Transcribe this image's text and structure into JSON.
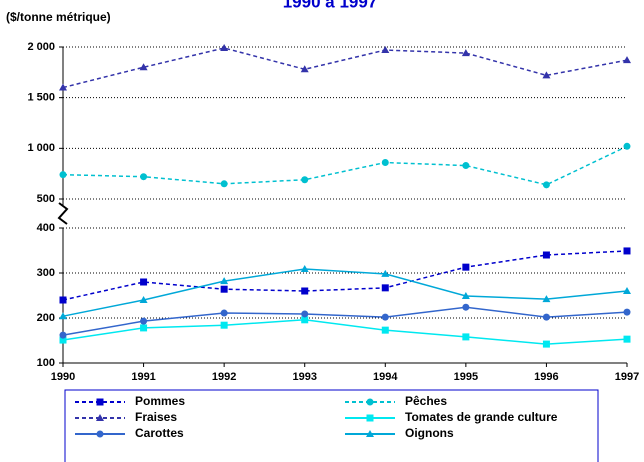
{
  "chart_data": {
    "type": "line",
    "title": "1990 à 1997",
    "y_label": "($/tonne métrique)",
    "categories": [
      "1990",
      "1991",
      "1992",
      "1993",
      "1994",
      "1995",
      "1996",
      "1997"
    ],
    "ylim": [
      100,
      400
    ],
    "yticks": [
      100,
      200,
      300,
      400
    ],
    "y2lim": [
      500,
      2000
    ],
    "y2ticks": [
      500,
      {
        "value": 1000,
        "label": "1 000"
      },
      {
        "value": 1500,
        "label": "1 500"
      },
      {
        "value": 2000,
        "label": "2 000"
      }
    ],
    "grid": true,
    "series": [
      {
        "name": "Pommes",
        "color": "#0000cc",
        "dash": true,
        "marker": "square",
        "values": [
          240,
          280,
          264,
          260,
          267,
          313,
          340,
          349
        ]
      },
      {
        "name": "Pêches",
        "color": "#00c0d0",
        "dash": true,
        "marker": "circle",
        "axis": "y2",
        "values": [
          740,
          720,
          650,
          690,
          860,
          830,
          640,
          1020
        ]
      },
      {
        "name": "Fraises",
        "color": "#3333aa",
        "dash": true,
        "marker": "triangle",
        "axis": "y2",
        "values": [
          1600,
          1800,
          1990,
          1780,
          1970,
          1940,
          1720,
          1870
        ]
      },
      {
        "name": "Tomates de grande culture",
        "color": "#00e8f0",
        "dash": false,
        "marker": "square",
        "values": [
          151,
          178,
          184,
          196,
          173,
          158,
          142,
          153
        ]
      },
      {
        "name": "Carottes",
        "color": "#3366cc",
        "dash": false,
        "marker": "circle",
        "values": [
          162,
          193,
          211,
          209,
          202,
          224,
          202,
          213
        ]
      },
      {
        "name": "Oignons",
        "color": "#00a8d8",
        "dash": false,
        "marker": "triangle",
        "values": [
          204,
          240,
          282,
          309,
          298,
          249,
          242,
          260
        ]
      }
    ]
  }
}
